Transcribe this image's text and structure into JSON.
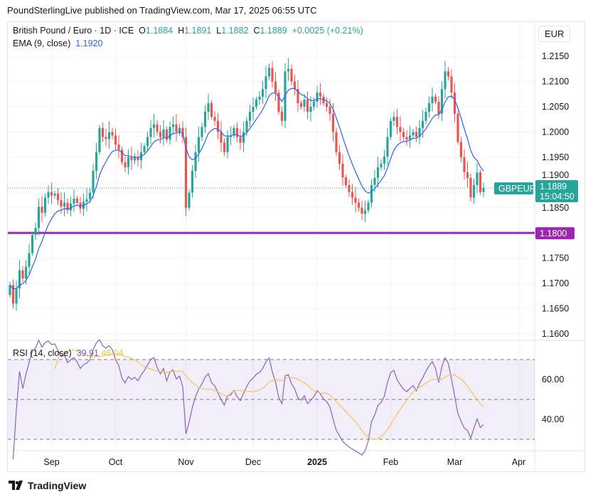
{
  "published": "PoundSterlingLive published on TradingView.com, Mar 17, 2025 06:55 UTC",
  "legend": {
    "symbol": "British Pound / Euro · 1D · ICE",
    "o_label": "O",
    "o": "1.1884",
    "h_label": "H",
    "h": "1.1891",
    "l_label": "L",
    "l": "1.1882",
    "c_label": "C",
    "c": "1.1889",
    "change": "+0.0025 (+0.21%)",
    "ema_label": "EMA (9, close)",
    "ema": "1.1920",
    "rsi_label": "RSI (14, close)",
    "rsi": "39.91",
    "rsi_ma": "46.04"
  },
  "currency": "EUR",
  "footer": "TradingView",
  "colors": {
    "up": "#26a69a",
    "down": "#ef5350",
    "ema": "#2962ff",
    "rsi": "#7e57c2",
    "rsi_ma": "#f5c242",
    "hline": "#9c27b0"
  },
  "chart_data": {
    "type": "candlestick",
    "symbol_tag": "GBPEUR",
    "last_price": "1.1889",
    "countdown": "15:04:50",
    "hline": 1.18,
    "hline_label": "1.1800",
    "ylim": [
      1.158,
      1.218
    ],
    "y_ticks": [
      "1.2150",
      "1.2100",
      "1.2050",
      "1.2000",
      "1.1950",
      "1.1900",
      "1.1850",
      "1.1800",
      "1.1750",
      "1.1700",
      "1.1650",
      "1.1600"
    ],
    "rsi_ticks": [
      "60.00",
      "40.00"
    ],
    "rsi_bands": [
      70,
      50,
      30
    ],
    "x_ticks": [
      {
        "label": "Sep",
        "bar": 13
      },
      {
        "label": "Oct",
        "bar": 33
      },
      {
        "label": "Nov",
        "bar": 55
      },
      {
        "label": "Dec",
        "bar": 76
      },
      {
        "label": "2025",
        "bar": 96,
        "bold": true
      },
      {
        "label": "Feb",
        "bar": 119
      },
      {
        "label": "Mar",
        "bar": 139
      },
      {
        "label": "Apr",
        "bar": 159
      }
    ],
    "closes": [
      1.1697,
      1.166,
      1.169,
      1.1726,
      1.171,
      1.1733,
      1.176,
      1.1796,
      1.181,
      1.1852,
      1.184,
      1.187,
      1.1881,
      1.1874,
      1.1878,
      1.1865,
      1.1852,
      1.186,
      1.1845,
      1.1858,
      1.1868,
      1.186,
      1.1848,
      1.1862,
      1.1867,
      1.188,
      1.1923,
      1.196,
      1.2008,
      1.199,
      1.1986,
      1.2,
      1.1993,
      1.1975,
      1.1965,
      1.194,
      1.193,
      1.195,
      1.1944,
      1.195,
      1.1944,
      1.196,
      1.1972,
      1.199,
      1.2008,
      1.2015,
      1.2,
      1.199,
      1.2005,
      1.1985,
      1.201,
      1.2015,
      1.2,
      1.2008,
      1.199,
      1.185,
      1.188,
      1.1923,
      1.196,
      1.199,
      1.201,
      1.204,
      1.2057,
      1.203,
      1.2022,
      1.2,
      1.1979,
      1.196,
      1.199,
      1.1993,
      1.2008,
      1.199,
      1.1979,
      1.2,
      1.2022,
      1.204,
      1.205,
      1.2064,
      1.207,
      1.2085,
      1.211,
      1.2127,
      1.21,
      1.2078,
      1.204,
      1.2022,
      1.212,
      1.2125,
      1.21,
      1.2085,
      1.2057,
      1.205,
      1.2064,
      1.204,
      1.205,
      1.206,
      1.2078,
      1.207,
      1.2057,
      1.205,
      1.2036,
      1.2,
      1.196,
      1.1937,
      1.191,
      1.1895,
      1.1881,
      1.187,
      1.186,
      1.185,
      1.1838,
      1.1845,
      1.186,
      1.1895,
      1.1909,
      1.193,
      1.1937,
      1.1951,
      1.199,
      1.2022,
      1.203,
      1.201,
      1.2,
      1.199,
      1.1985,
      1.1993,
      1.2,
      1.199,
      1.2008,
      1.2022,
      1.204,
      1.2057,
      1.207,
      1.206,
      1.2036,
      1.2085,
      1.212,
      1.211,
      1.2078,
      1.2036,
      1.198,
      1.195,
      1.192,
      1.1909,
      1.187,
      1.1895,
      1.192,
      1.1881,
      1.1889
    ]
  }
}
